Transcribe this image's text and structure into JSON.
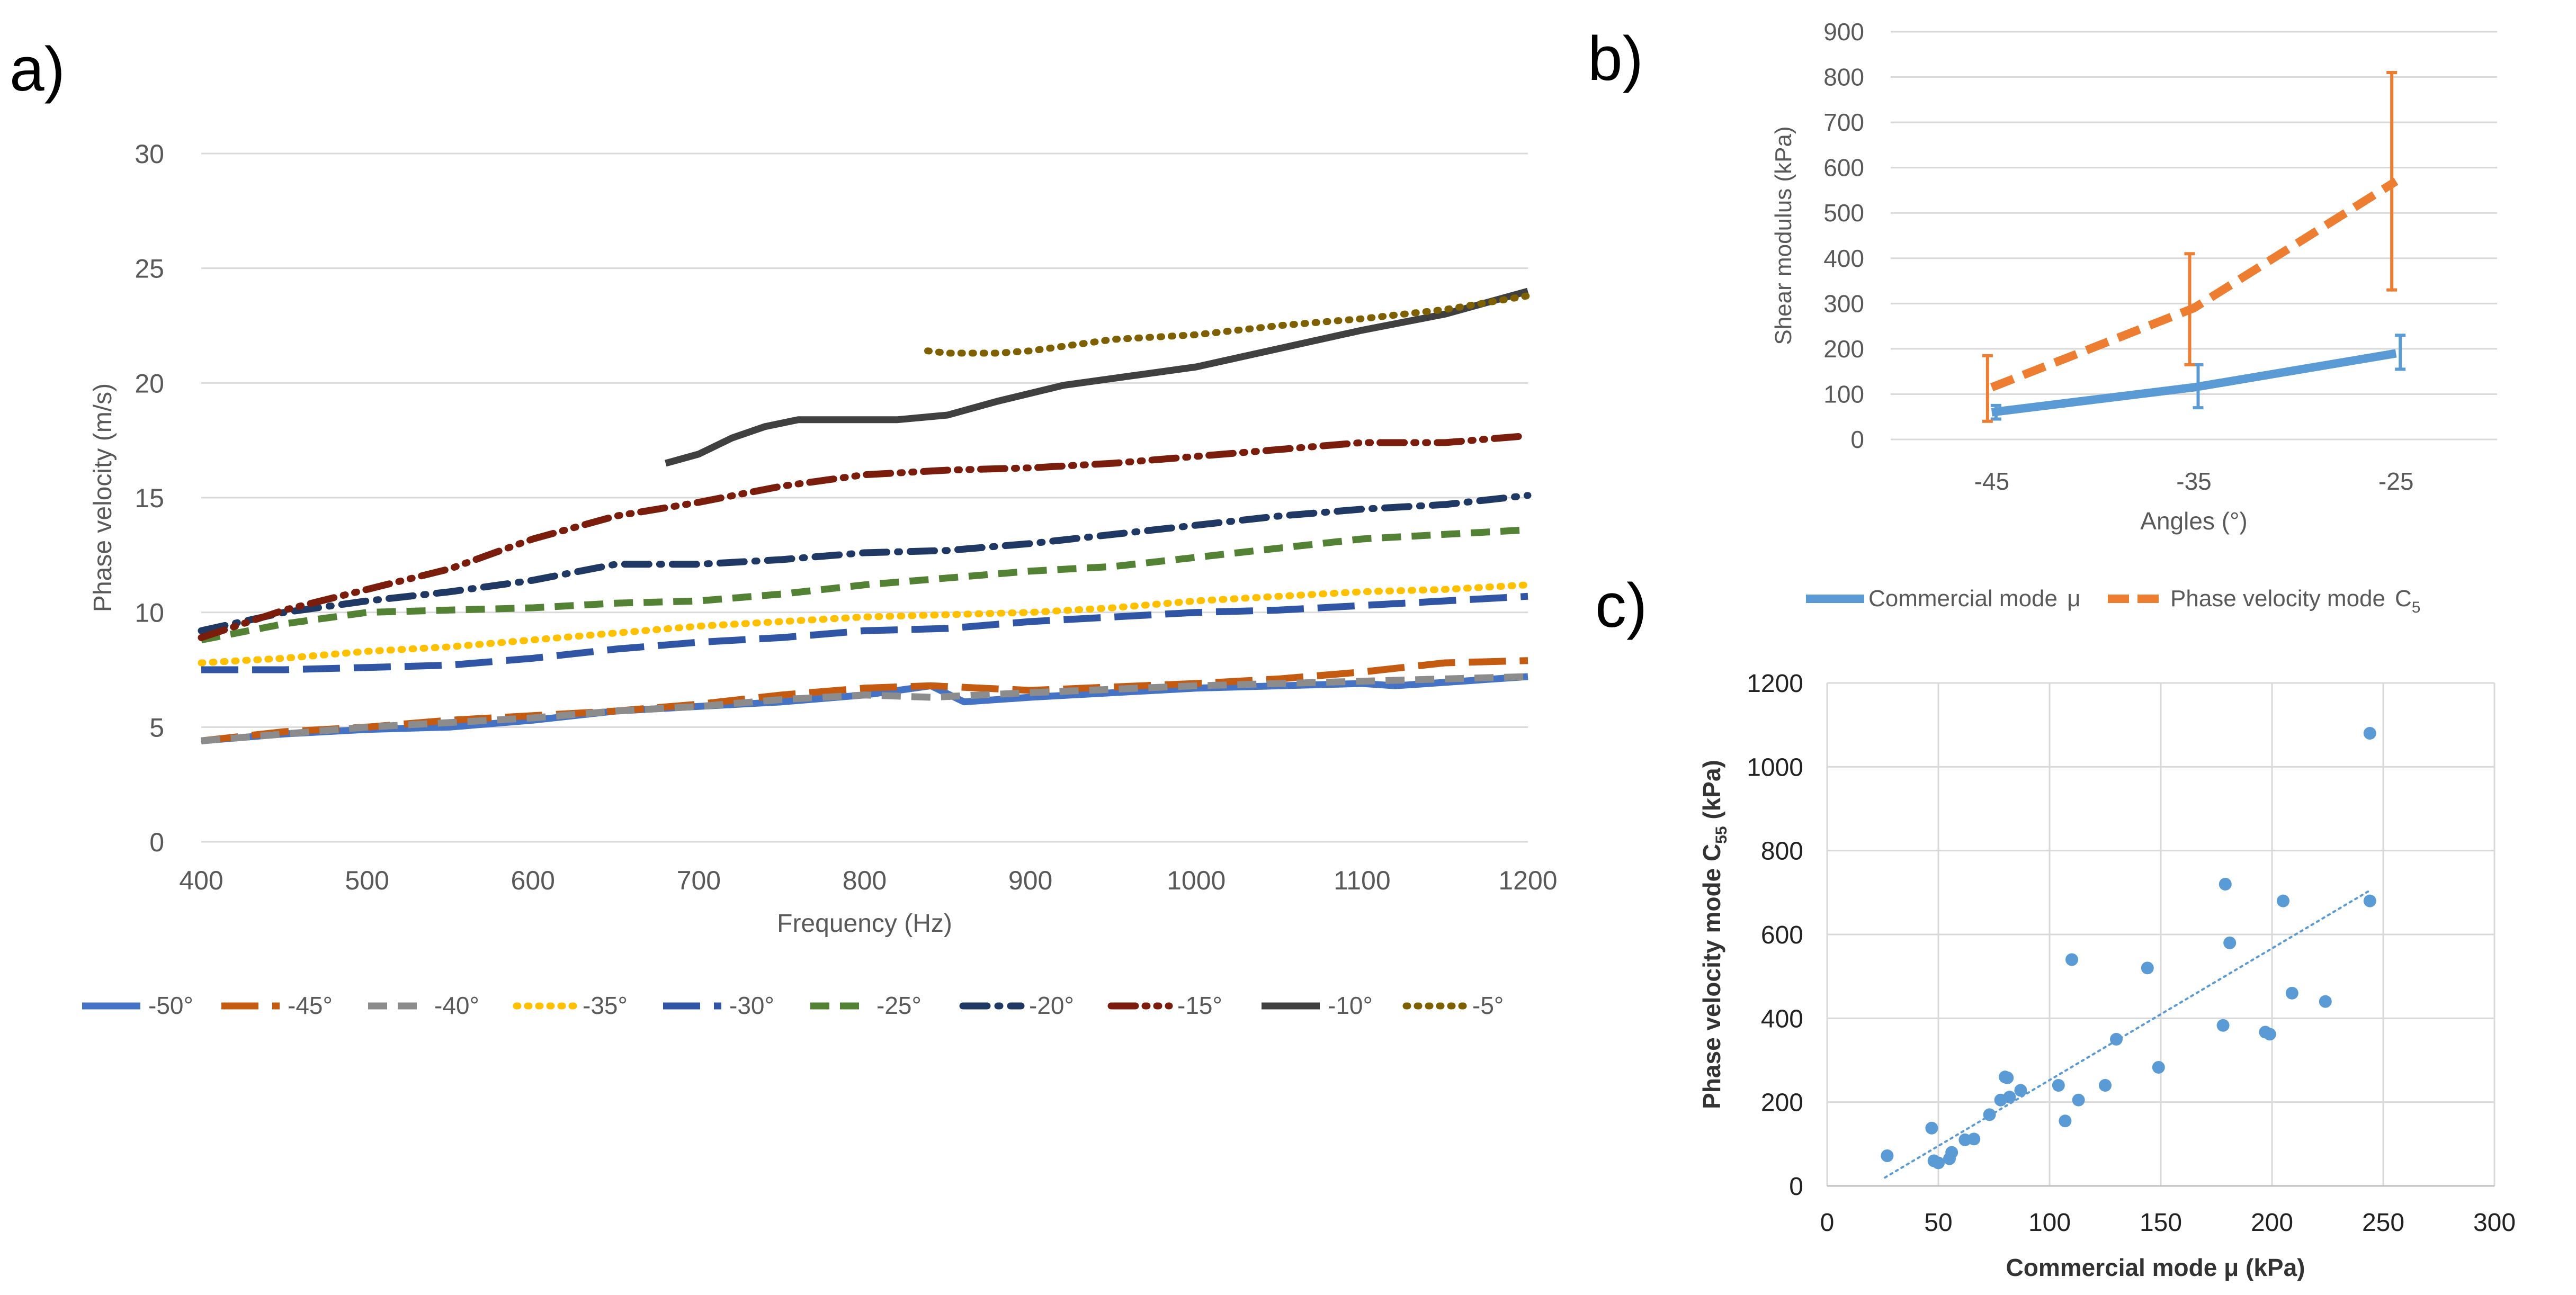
{
  "panel_labels": {
    "a": "a)",
    "b": "b)",
    "c": "c)"
  },
  "colors": {
    "grid": "#d9d9d9",
    "axis_text": "#595959",
    "blue": "#5b9bd5",
    "orange": "#ed7d31",
    "scatter": "#5b9bd5"
  },
  "chart_data": [
    {
      "id": "a",
      "type": "line",
      "title": "",
      "xlabel": "Frequency (Hz)",
      "ylabel": "Phase velocity (m/s)",
      "xlim": [
        400,
        1200
      ],
      "ylim": [
        0,
        30
      ],
      "x_ticks": [
        400,
        500,
        600,
        700,
        800,
        900,
        1000,
        1100,
        1200
      ],
      "y_ticks": [
        0,
        5,
        10,
        15,
        20,
        25,
        30
      ],
      "grid": "horizontal",
      "legend_position": "bottom",
      "series": [
        {
          "name": "-50°",
          "color": "#4472c4",
          "style": "solid",
          "points": [
            [
              400,
              4.4
            ],
            [
              450,
              4.7
            ],
            [
              500,
              4.9
            ],
            [
              550,
              5.0
            ],
            [
              600,
              5.3
            ],
            [
              650,
              5.7
            ],
            [
              700,
              5.9
            ],
            [
              750,
              6.1
            ],
            [
              800,
              6.4
            ],
            [
              840,
              6.8
            ],
            [
              860,
              6.1
            ],
            [
              900,
              6.3
            ],
            [
              1000,
              6.7
            ],
            [
              1100,
              6.9
            ],
            [
              1120,
              6.8
            ],
            [
              1200,
              7.2
            ]
          ]
        },
        {
          "name": "-45°",
          "color": "#c55a11",
          "style": "longdash",
          "points": [
            [
              400,
              4.4
            ],
            [
              450,
              4.8
            ],
            [
              500,
              5.0
            ],
            [
              550,
              5.3
            ],
            [
              600,
              5.5
            ],
            [
              650,
              5.7
            ],
            [
              700,
              6.0
            ],
            [
              750,
              6.4
            ],
            [
              800,
              6.7
            ],
            [
              840,
              6.8
            ],
            [
              900,
              6.6
            ],
            [
              1000,
              6.9
            ],
            [
              1050,
              7.1
            ],
            [
              1100,
              7.4
            ],
            [
              1150,
              7.8
            ],
            [
              1200,
              7.9
            ]
          ]
        },
        {
          "name": "-40°",
          "color": "#8c8c8c",
          "style": "dash",
          "points": [
            [
              400,
              4.4
            ],
            [
              450,
              4.7
            ],
            [
              500,
              5.0
            ],
            [
              550,
              5.2
            ],
            [
              600,
              5.4
            ],
            [
              650,
              5.7
            ],
            [
              700,
              5.9
            ],
            [
              750,
              6.2
            ],
            [
              800,
              6.4
            ],
            [
              840,
              6.3
            ],
            [
              900,
              6.5
            ],
            [
              1000,
              6.8
            ],
            [
              1100,
              7.0
            ],
            [
              1200,
              7.2
            ]
          ]
        },
        {
          "name": "-35°",
          "color": "#ffc000",
          "style": "dot",
          "points": [
            [
              400,
              7.8
            ],
            [
              450,
              8.0
            ],
            [
              500,
              8.3
            ],
            [
              550,
              8.5
            ],
            [
              600,
              8.8
            ],
            [
              650,
              9.1
            ],
            [
              700,
              9.4
            ],
            [
              750,
              9.6
            ],
            [
              800,
              9.8
            ],
            [
              850,
              9.9
            ],
            [
              900,
              10.0
            ],
            [
              950,
              10.2
            ],
            [
              1000,
              10.5
            ],
            [
              1050,
              10.7
            ],
            [
              1100,
              10.9
            ],
            [
              1150,
              11.0
            ],
            [
              1200,
              11.2
            ]
          ]
        },
        {
          "name": "-30°",
          "color": "#2f55a4",
          "style": "longdash",
          "points": [
            [
              400,
              7.5
            ],
            [
              450,
              7.5
            ],
            [
              500,
              7.6
            ],
            [
              550,
              7.7
            ],
            [
              600,
              8.0
            ],
            [
              650,
              8.4
            ],
            [
              700,
              8.7
            ],
            [
              750,
              8.9
            ],
            [
              800,
              9.2
            ],
            [
              850,
              9.3
            ],
            [
              900,
              9.6
            ],
            [
              950,
              9.8
            ],
            [
              1000,
              10.0
            ],
            [
              1050,
              10.1
            ],
            [
              1100,
              10.3
            ],
            [
              1150,
              10.5
            ],
            [
              1200,
              10.7
            ]
          ]
        },
        {
          "name": "-25°",
          "color": "#548235",
          "style": "dash",
          "points": [
            [
              400,
              8.8
            ],
            [
              450,
              9.5
            ],
            [
              500,
              10.0
            ],
            [
              550,
              10.1
            ],
            [
              600,
              10.2
            ],
            [
              650,
              10.4
            ],
            [
              700,
              10.5
            ],
            [
              750,
              10.8
            ],
            [
              800,
              11.2
            ],
            [
              850,
              11.5
            ],
            [
              900,
              11.8
            ],
            [
              950,
              12.0
            ],
            [
              1000,
              12.4
            ],
            [
              1050,
              12.8
            ],
            [
              1100,
              13.2
            ],
            [
              1150,
              13.4
            ],
            [
              1200,
              13.6
            ]
          ]
        },
        {
          "name": "-20°",
          "color": "#1f3864",
          "style": "dashdot",
          "points": [
            [
              400,
              9.2
            ],
            [
              450,
              10.0
            ],
            [
              500,
              10.5
            ],
            [
              550,
              10.9
            ],
            [
              600,
              11.4
            ],
            [
              650,
              12.1
            ],
            [
              700,
              12.1
            ],
            [
              750,
              12.3
            ],
            [
              800,
              12.6
            ],
            [
              850,
              12.7
            ],
            [
              900,
              13.0
            ],
            [
              950,
              13.4
            ],
            [
              1000,
              13.8
            ],
            [
              1050,
              14.2
            ],
            [
              1100,
              14.5
            ],
            [
              1150,
              14.7
            ],
            [
              1200,
              15.1
            ]
          ]
        },
        {
          "name": "-15°",
          "color": "#7b1d0c",
          "style": "dashdotdot",
          "points": [
            [
              400,
              8.9
            ],
            [
              450,
              10.1
            ],
            [
              500,
              11.0
            ],
            [
              550,
              11.9
            ],
            [
              600,
              13.2
            ],
            [
              650,
              14.2
            ],
            [
              700,
              14.8
            ],
            [
              750,
              15.5
            ],
            [
              800,
              16.0
            ],
            [
              850,
              16.2
            ],
            [
              900,
              16.3
            ],
            [
              950,
              16.5
            ],
            [
              1000,
              16.8
            ],
            [
              1050,
              17.1
            ],
            [
              1100,
              17.4
            ],
            [
              1150,
              17.4
            ],
            [
              1200,
              17.7
            ]
          ]
        },
        {
          "name": "-10°",
          "color": "#404040",
          "style": "solid",
          "points": [
            [
              680,
              16.5
            ],
            [
              700,
              16.9
            ],
            [
              720,
              17.6
            ],
            [
              740,
              18.1
            ],
            [
              760,
              18.4
            ],
            [
              800,
              18.4
            ],
            [
              820,
              18.4
            ],
            [
              850,
              18.6
            ],
            [
              880,
              19.2
            ],
            [
              920,
              19.9
            ],
            [
              960,
              20.3
            ],
            [
              1000,
              20.7
            ],
            [
              1050,
              21.5
            ],
            [
              1100,
              22.3
            ],
            [
              1150,
              23.0
            ],
            [
              1200,
              24.0
            ]
          ]
        },
        {
          "name": "-5°",
          "color": "#7f6000",
          "style": "dot",
          "points": [
            [
              838,
              21.4
            ],
            [
              850,
              21.3
            ],
            [
              880,
              21.3
            ],
            [
              900,
              21.4
            ],
            [
              950,
              21.9
            ],
            [
              1000,
              22.1
            ],
            [
              1050,
              22.5
            ],
            [
              1100,
              22.8
            ],
            [
              1150,
              23.2
            ],
            [
              1200,
              23.8
            ]
          ]
        }
      ]
    },
    {
      "id": "b",
      "type": "line",
      "title": "",
      "xlabel": "Angles (°)",
      "ylabel": "Shear modulus (kPa)",
      "categories": [
        "-45",
        "-35",
        "-25"
      ],
      "ylim": [
        0,
        900
      ],
      "y_ticks": [
        0,
        100,
        200,
        300,
        400,
        500,
        600,
        700,
        800,
        900
      ],
      "grid": "horizontal",
      "legend_position": "bottom",
      "series": [
        {
          "name": "Commercial mode",
          "name_symbol": "μ",
          "color": "#5b9bd5",
          "style": "solid",
          "values": [
            60,
            115,
            190
          ],
          "err_low": [
            45,
            70,
            155
          ],
          "err_high": [
            75,
            165,
            230
          ]
        },
        {
          "name": "Phase velocity mode",
          "name_symbol": "C",
          "name_sub": "5",
          "color": "#ed7d31",
          "style": "dash",
          "values": [
            115,
            290,
            570
          ],
          "err_low": [
            40,
            165,
            330
          ],
          "err_high": [
            185,
            410,
            810
          ]
        }
      ]
    },
    {
      "id": "c",
      "type": "scatter",
      "title": "",
      "xlabel": "Commercial mode μ (kPa)",
      "ylabel_prefix": "Phase velocity mode C",
      "ylabel_sub": "55",
      "ylabel_suffix": " (kPa)",
      "xlim": [
        0,
        300
      ],
      "ylim": [
        0,
        1200
      ],
      "x_ticks": [
        0,
        50,
        100,
        150,
        200,
        250,
        300
      ],
      "y_ticks": [
        0,
        200,
        400,
        600,
        800,
        1000,
        1200
      ],
      "grid": "both",
      "trendline": {
        "style": "dotted",
        "from": [
          26,
          20
        ],
        "to": [
          244,
          705
        ]
      },
      "points": [
        [
          27,
          72
        ],
        [
          47,
          138
        ],
        [
          48,
          60
        ],
        [
          50,
          55
        ],
        [
          55,
          65
        ],
        [
          56,
          80
        ],
        [
          62,
          110
        ],
        [
          66,
          112
        ],
        [
          73,
          170
        ],
        [
          78,
          205
        ],
        [
          80,
          260
        ],
        [
          81,
          258
        ],
        [
          82,
          212
        ],
        [
          87,
          228
        ],
        [
          104,
          240
        ],
        [
          107,
          155
        ],
        [
          110,
          540
        ],
        [
          113,
          205
        ],
        [
          125,
          240
        ],
        [
          130,
          350
        ],
        [
          144,
          520
        ],
        [
          149,
          283
        ],
        [
          178,
          383
        ],
        [
          179,
          720
        ],
        [
          181,
          580
        ],
        [
          197,
          367
        ],
        [
          199,
          362
        ],
        [
          205,
          680
        ],
        [
          209,
          460
        ],
        [
          224,
          440
        ],
        [
          244,
          1080
        ],
        [
          244,
          680
        ]
      ]
    }
  ]
}
